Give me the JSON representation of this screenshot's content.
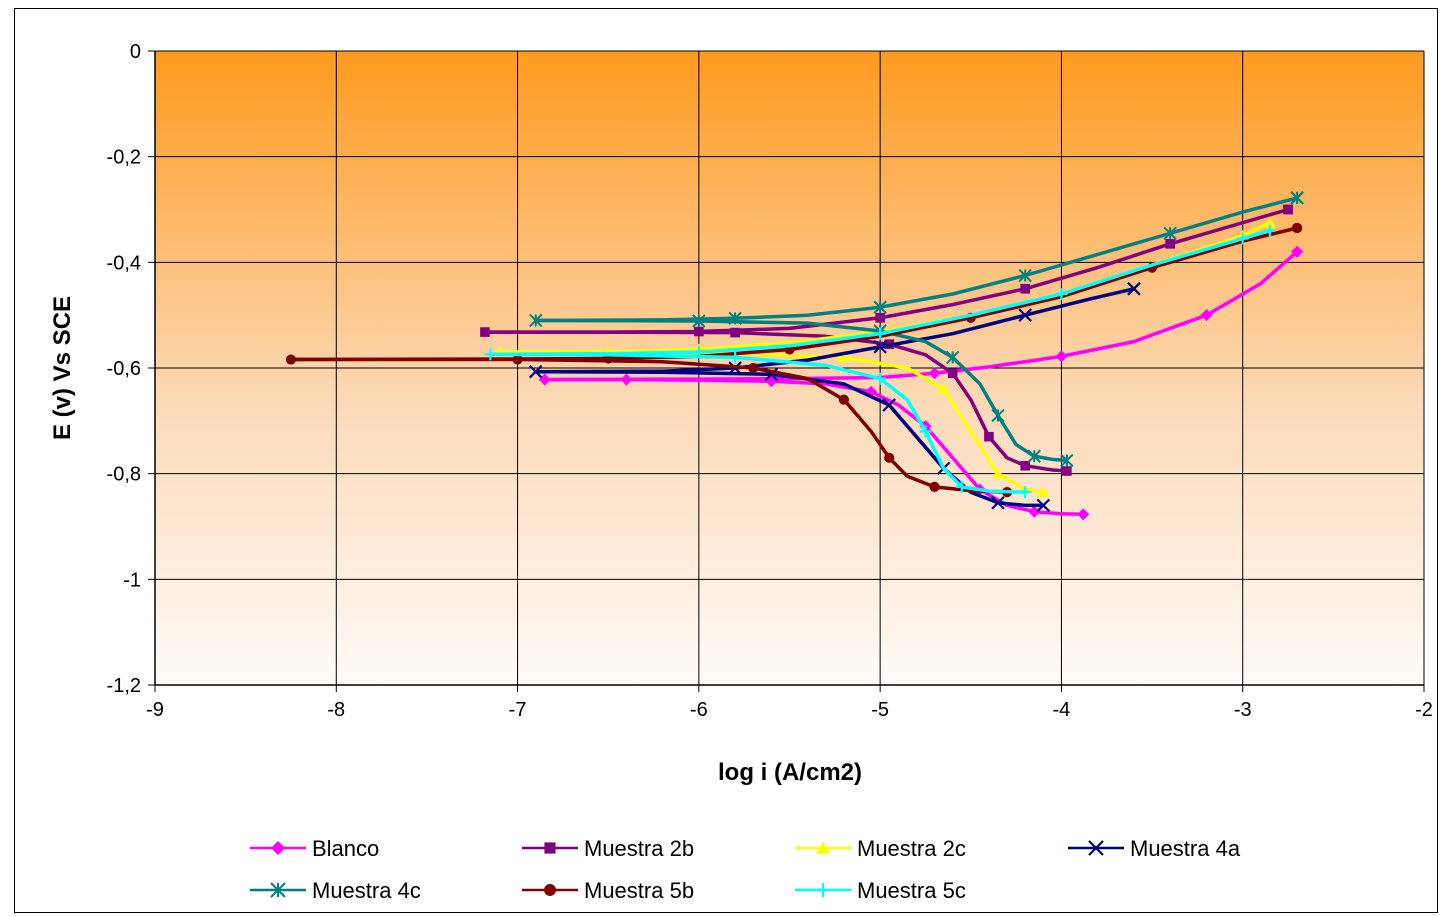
{
  "chart_data": {
    "type": "scatter",
    "title": "",
    "xlabel": "log i (A/cm2)",
    "ylabel": "E (v) Vs SCE",
    "xlim": [
      -9,
      -2
    ],
    "ylim": [
      -1.2,
      0
    ],
    "x_ticks": [
      -9,
      -8,
      -7,
      -6,
      -5,
      -4,
      -3,
      -2
    ],
    "x_tick_labels": [
      "-9",
      "-8",
      "-7",
      "-6",
      "-5",
      "-4",
      "-3",
      "-2"
    ],
    "y_ticks": [
      0,
      -0.2,
      -0.4,
      -0.6,
      -0.8,
      -1,
      -1.2
    ],
    "y_tick_labels": [
      "0",
      "-0,2",
      "-0,4",
      "-0,6",
      "-0,8",
      "-1",
      "-1,2"
    ],
    "grid": true,
    "background_gradient": [
      "#ff9a1e",
      "#fffbf8"
    ],
    "legend_position": "bottom",
    "series": [
      {
        "name": "Blanco",
        "color": "#ff00ff",
        "marker": "diamond",
        "cathodic": [
          [
            -3.88,
            -0.877
          ],
          [
            -4.0,
            -0.876
          ],
          [
            -4.15,
            -0.872
          ],
          [
            -4.3,
            -0.86
          ],
          [
            -4.45,
            -0.83
          ],
          [
            -4.6,
            -0.77
          ],
          [
            -4.75,
            -0.71
          ],
          [
            -4.9,
            -0.67
          ],
          [
            -5.05,
            -0.645
          ],
          [
            -5.3,
            -0.63
          ],
          [
            -5.6,
            -0.625
          ],
          [
            -6.0,
            -0.623
          ],
          [
            -6.4,
            -0.622
          ],
          [
            -6.85,
            -0.622
          ]
        ],
        "anodic": [
          [
            -6.85,
            -0.622
          ],
          [
            -6.0,
            -0.621
          ],
          [
            -5.5,
            -0.62
          ],
          [
            -5.0,
            -0.618
          ],
          [
            -4.7,
            -0.61
          ],
          [
            -4.4,
            -0.598
          ],
          [
            -4.0,
            -0.578
          ],
          [
            -3.6,
            -0.55
          ],
          [
            -3.2,
            -0.5
          ],
          [
            -2.9,
            -0.44
          ],
          [
            -2.7,
            -0.38
          ]
        ]
      },
      {
        "name": "Muestra 2b",
        "color": "#800080",
        "marker": "square",
        "cathodic": [
          [
            -3.97,
            -0.795
          ],
          [
            -4.05,
            -0.793
          ],
          [
            -4.2,
            -0.785
          ],
          [
            -4.3,
            -0.77
          ],
          [
            -4.4,
            -0.73
          ],
          [
            -4.5,
            -0.66
          ],
          [
            -4.6,
            -0.61
          ],
          [
            -4.75,
            -0.575
          ],
          [
            -4.95,
            -0.555
          ],
          [
            -5.3,
            -0.54
          ],
          [
            -5.8,
            -0.533
          ],
          [
            -6.5,
            -0.532
          ],
          [
            -7.18,
            -0.532
          ]
        ],
        "anodic": [
          [
            -7.18,
            -0.532
          ],
          [
            -6.5,
            -0.532
          ],
          [
            -6.0,
            -0.531
          ],
          [
            -5.5,
            -0.525
          ],
          [
            -5.0,
            -0.505
          ],
          [
            -4.6,
            -0.48
          ],
          [
            -4.2,
            -0.45
          ],
          [
            -3.8,
            -0.41
          ],
          [
            -3.4,
            -0.365
          ],
          [
            -3.0,
            -0.325
          ],
          [
            -2.75,
            -0.3
          ]
        ]
      },
      {
        "name": "Muestra 2c",
        "color": "#ffff00",
        "marker": "triangle",
        "cathodic": [
          [
            -4.1,
            -0.835
          ],
          [
            -4.2,
            -0.83
          ],
          [
            -4.35,
            -0.8
          ],
          [
            -4.5,
            -0.72
          ],
          [
            -4.65,
            -0.64
          ],
          [
            -4.85,
            -0.6
          ],
          [
            -5.2,
            -0.58
          ],
          [
            -5.8,
            -0.572
          ],
          [
            -6.5,
            -0.57
          ],
          [
            -7.1,
            -0.57
          ]
        ],
        "anodic": [
          [
            -7.1,
            -0.57
          ],
          [
            -6.5,
            -0.569
          ],
          [
            -6.0,
            -0.565
          ],
          [
            -5.5,
            -0.552
          ],
          [
            -5.0,
            -0.532
          ],
          [
            -4.5,
            -0.5
          ],
          [
            -4.0,
            -0.46
          ],
          [
            -3.5,
            -0.405
          ],
          [
            -3.0,
            -0.35
          ],
          [
            -2.85,
            -0.325
          ]
        ]
      },
      {
        "name": "Muestra 4a",
        "color": "#000080",
        "marker": "x",
        "cathodic": [
          [
            -4.1,
            -0.86
          ],
          [
            -4.2,
            -0.86
          ],
          [
            -4.35,
            -0.855
          ],
          [
            -4.5,
            -0.835
          ],
          [
            -4.65,
            -0.79
          ],
          [
            -4.8,
            -0.73
          ],
          [
            -4.95,
            -0.67
          ],
          [
            -5.2,
            -0.63
          ],
          [
            -5.6,
            -0.612
          ],
          [
            -6.2,
            -0.608
          ],
          [
            -6.9,
            -0.607
          ]
        ],
        "anodic": [
          [
            -6.9,
            -0.607
          ],
          [
            -6.2,
            -0.606
          ],
          [
            -5.8,
            -0.6
          ],
          [
            -5.4,
            -0.585
          ],
          [
            -5.0,
            -0.56
          ],
          [
            -4.6,
            -0.535
          ],
          [
            -4.2,
            -0.5
          ],
          [
            -3.85,
            -0.47
          ],
          [
            -3.6,
            -0.45
          ]
        ]
      },
      {
        "name": "Muestra 4c",
        "color": "#008080",
        "marker": "star",
        "cathodic": [
          [
            -3.97,
            -0.775
          ],
          [
            -4.05,
            -0.773
          ],
          [
            -4.15,
            -0.767
          ],
          [
            -4.25,
            -0.745
          ],
          [
            -4.35,
            -0.69
          ],
          [
            -4.45,
            -0.63
          ],
          [
            -4.6,
            -0.58
          ],
          [
            -4.75,
            -0.55
          ],
          [
            -5.0,
            -0.53
          ],
          [
            -5.4,
            -0.515
          ],
          [
            -6.0,
            -0.511
          ],
          [
            -6.9,
            -0.51
          ]
        ],
        "anodic": [
          [
            -6.9,
            -0.51
          ],
          [
            -6.2,
            -0.509
          ],
          [
            -5.8,
            -0.506
          ],
          [
            -5.4,
            -0.5
          ],
          [
            -5.0,
            -0.485
          ],
          [
            -4.6,
            -0.46
          ],
          [
            -4.2,
            -0.425
          ],
          [
            -3.8,
            -0.385
          ],
          [
            -3.4,
            -0.345
          ],
          [
            -3.0,
            -0.305
          ],
          [
            -2.7,
            -0.278
          ]
        ]
      },
      {
        "name": "Muestra 5b",
        "color": "#800000",
        "marker": "circle",
        "cathodic": [
          [
            -4.3,
            -0.835
          ],
          [
            -4.5,
            -0.832
          ],
          [
            -4.7,
            -0.825
          ],
          [
            -4.85,
            -0.805
          ],
          [
            -4.95,
            -0.77
          ],
          [
            -5.05,
            -0.72
          ],
          [
            -5.2,
            -0.66
          ],
          [
            -5.4,
            -0.62
          ],
          [
            -5.7,
            -0.6
          ],
          [
            -6.2,
            -0.588
          ],
          [
            -7.0,
            -0.584
          ],
          [
            -8.25,
            -0.584
          ]
        ],
        "anodic": [
          [
            -8.25,
            -0.584
          ],
          [
            -7.0,
            -0.583
          ],
          [
            -6.5,
            -0.582
          ],
          [
            -6.0,
            -0.578
          ],
          [
            -5.5,
            -0.565
          ],
          [
            -5.0,
            -0.54
          ],
          [
            -4.5,
            -0.505
          ],
          [
            -4.0,
            -0.465
          ],
          [
            -3.5,
            -0.41
          ],
          [
            -3.0,
            -0.36
          ],
          [
            -2.7,
            -0.335
          ]
        ]
      },
      {
        "name": "Muestra 5c",
        "color": "#00ffff",
        "marker": "plus",
        "cathodic": [
          [
            -4.2,
            -0.835
          ],
          [
            -4.4,
            -0.833
          ],
          [
            -4.55,
            -0.825
          ],
          [
            -4.65,
            -0.79
          ],
          [
            -4.75,
            -0.72
          ],
          [
            -4.85,
            -0.66
          ],
          [
            -5.0,
            -0.62
          ],
          [
            -5.3,
            -0.595
          ],
          [
            -5.8,
            -0.58
          ],
          [
            -6.5,
            -0.575
          ],
          [
            -7.15,
            -0.574
          ]
        ],
        "anodic": [
          [
            -7.15,
            -0.574
          ],
          [
            -6.5,
            -0.573
          ],
          [
            -6.0,
            -0.57
          ],
          [
            -5.5,
            -0.558
          ],
          [
            -5.0,
            -0.535
          ],
          [
            -4.5,
            -0.5
          ],
          [
            -4.0,
            -0.46
          ],
          [
            -3.5,
            -0.405
          ],
          [
            -3.0,
            -0.355
          ],
          [
            -2.85,
            -0.34
          ]
        ]
      }
    ]
  }
}
